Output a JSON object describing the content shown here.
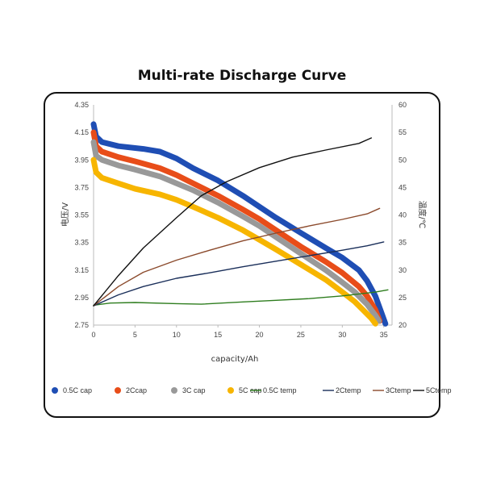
{
  "chart_data": {
    "type": "line",
    "title": "Multi-rate Discharge Curve",
    "xlabel": "capacity/Ah",
    "ylabel": "电压/V",
    "y2label": "温度/℃",
    "xlim": [
      0,
      36
    ],
    "ylim": [
      2.75,
      4.35
    ],
    "y2lim": [
      20,
      60
    ],
    "x_ticks": [
      "0",
      "5",
      "10",
      "15",
      "20",
      "25",
      "30",
      "35"
    ],
    "y_ticks": [
      "2.75",
      "2.95",
      "3.15",
      "3.35",
      "3.55",
      "3.75",
      "3.95",
      "4.15",
      "4.35"
    ],
    "y2_ticks": [
      "20",
      "25",
      "30",
      "35",
      "40",
      "45",
      "50",
      "55",
      "60"
    ],
    "grid": false,
    "legend_position": "bottom",
    "series": [
      {
        "name": "0.5C cap",
        "axis": "left",
        "color": "#1f4eb4",
        "style": "thick",
        "x": [
          0,
          0.3,
          1,
          3,
          6,
          8,
          10,
          12,
          15,
          18,
          20,
          22,
          25,
          28,
          30,
          32,
          33,
          34,
          34.6,
          35.2
        ],
        "y": [
          4.21,
          4.12,
          4.08,
          4.05,
          4.03,
          4.01,
          3.96,
          3.89,
          3.8,
          3.69,
          3.61,
          3.53,
          3.42,
          3.31,
          3.24,
          3.15,
          3.07,
          2.96,
          2.86,
          2.76
        ]
      },
      {
        "name": "2Ccap",
        "axis": "left",
        "color": "#e84d19",
        "style": "thick",
        "x": [
          0,
          0.3,
          1,
          3,
          5,
          8,
          10,
          12,
          15,
          18,
          20,
          22,
          25,
          28,
          30,
          32,
          33,
          34,
          34.5
        ],
        "y": [
          4.15,
          4.05,
          4.01,
          3.97,
          3.94,
          3.89,
          3.84,
          3.78,
          3.69,
          3.59,
          3.52,
          3.44,
          3.32,
          3.21,
          3.13,
          3.03,
          2.96,
          2.86,
          2.78
        ]
      },
      {
        "name": "3C cap",
        "axis": "left",
        "color": "#999999",
        "style": "thick",
        "x": [
          0,
          0.3,
          1,
          3,
          5,
          8,
          10,
          12,
          15,
          18,
          20,
          22,
          25,
          28,
          30,
          31.5,
          33,
          34,
          34.4
        ],
        "y": [
          4.08,
          3.98,
          3.95,
          3.91,
          3.88,
          3.83,
          3.78,
          3.73,
          3.64,
          3.54,
          3.47,
          3.39,
          3.27,
          3.15,
          3.06,
          2.99,
          2.9,
          2.82,
          2.78
        ]
      },
      {
        "name": "5C cap",
        "axis": "left",
        "color": "#f7b500",
        "style": "thick",
        "x": [
          0,
          0.3,
          1,
          3,
          5,
          8,
          10,
          12,
          15,
          18,
          20,
          22,
          25,
          28,
          30,
          31.5,
          32.5,
          33.5,
          34
        ],
        "y": [
          3.95,
          3.86,
          3.82,
          3.78,
          3.74,
          3.7,
          3.66,
          3.61,
          3.53,
          3.44,
          3.37,
          3.3,
          3.19,
          3.08,
          2.99,
          2.92,
          2.86,
          2.8,
          2.76
        ]
      },
      {
        "name": "0.5C temp",
        "axis": "right",
        "color": "#2e7d1e",
        "style": "thin",
        "x": [
          0,
          2,
          5,
          10,
          13,
          18,
          22,
          26,
          30,
          34,
          35.5
        ],
        "y": [
          23.6,
          24.0,
          24.1,
          23.9,
          23.8,
          24.2,
          24.5,
          24.8,
          25.3,
          26.0,
          26.4
        ]
      },
      {
        "name": "2Ctemp",
        "axis": "right",
        "color": "#1a2f5a",
        "style": "thin",
        "x": [
          0,
          3,
          6,
          10,
          14,
          18,
          22,
          26,
          30,
          33,
          35
        ],
        "y": [
          23.5,
          25.5,
          27.0,
          28.5,
          29.5,
          30.6,
          31.6,
          32.6,
          33.6,
          34.4,
          35.1
        ]
      },
      {
        "name": "3Ctemp",
        "axis": "right",
        "color": "#8b4a2c",
        "style": "thin",
        "x": [
          0,
          3,
          6,
          10,
          14,
          18,
          22,
          26,
          30,
          33,
          34.5
        ],
        "y": [
          23.5,
          27.0,
          29.6,
          31.8,
          33.6,
          35.3,
          36.7,
          38.0,
          39.2,
          40.2,
          41.2
        ]
      },
      {
        "name": "5Ctemp",
        "axis": "right",
        "color": "#111111",
        "style": "thin",
        "x": [
          0,
          3,
          6,
          10,
          13,
          16,
          20,
          24,
          28,
          32,
          33.5
        ],
        "y": [
          23.5,
          29.0,
          34.0,
          39.5,
          43.5,
          46.0,
          48.6,
          50.5,
          51.8,
          53.0,
          54.0
        ]
      }
    ]
  }
}
